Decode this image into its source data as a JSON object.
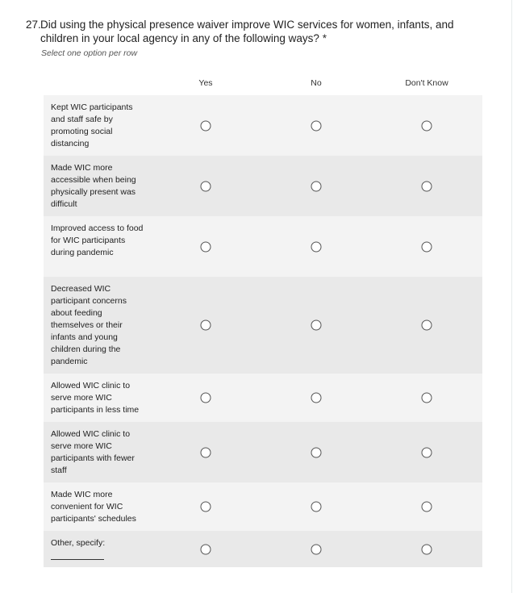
{
  "question": {
    "number": "27.",
    "text": "Did using the physical presence waiver improve WIC services for women, infants, and children in your local agency in any of the following ways?",
    "required_marker": "*",
    "hint": "Select one option per row"
  },
  "columns": [
    "Yes",
    "No",
    "Don't Know"
  ],
  "rows": [
    {
      "label": "Kept WIC participants and staff safe by promoting social distancing"
    },
    {
      "label": "Made WIC more accessible when being physically present was difficult"
    },
    {
      "label": "Improved access to food for WIC participants during pandemic"
    },
    {
      "label": "Decreased WIC participant concerns about feeding themselves or their infants and young children during the pandemic"
    },
    {
      "label": "Allowed WIC clinic to serve more WIC participants in less time"
    },
    {
      "label": "Allowed WIC clinic to serve more WIC participants with fewer staff"
    },
    {
      "label": "Made WIC more convenient for WIC participants' schedules"
    },
    {
      "label": "Other, specify:"
    }
  ]
}
